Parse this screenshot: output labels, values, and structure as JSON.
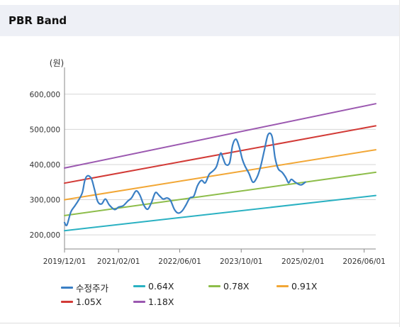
{
  "header": {
    "title": "PBR Band"
  },
  "chart_data": {
    "type": "line",
    "unit_label": "(원)",
    "x_ticks": [
      "2019/12/01",
      "2021/02/01",
      "2022/06/01",
      "2023/10/01",
      "2025/02/01",
      "2026/06/01"
    ],
    "x_range": [
      "2019/12/01",
      "2026/09/01"
    ],
    "y_ticks": [
      "200,000",
      "300,000",
      "400,000",
      "500,000",
      "600,000"
    ],
    "ylim": [
      160000,
      660000
    ],
    "grid": {
      "horizontal": true,
      "vertical": false
    },
    "legend_position": "bottom",
    "series": [
      {
        "name": "수정주가",
        "color": "#3a7fc4",
        "smooth": true,
        "points": [
          [
            "2019/12/01",
            235000
          ],
          [
            "2019/12/20",
            228000
          ],
          [
            "2020/01/20",
            265000
          ],
          [
            "2020/02/20",
            282000
          ],
          [
            "2020/03/20",
            298000
          ],
          [
            "2020/04/20",
            320000
          ],
          [
            "2020/05/10",
            355000
          ],
          [
            "2020/06/01",
            368000
          ],
          [
            "2020/07/01",
            360000
          ],
          [
            "2020/07/25",
            330000
          ],
          [
            "2020/08/20",
            295000
          ],
          [
            "2020/09/20",
            288000
          ],
          [
            "2020/10/20",
            302000
          ],
          [
            "2020/11/20",
            285000
          ],
          [
            "2021/01/01",
            272000
          ],
          [
            "2021/02/01",
            279000
          ],
          [
            "2021/03/10",
            283000
          ],
          [
            "2021/04/15",
            296000
          ],
          [
            "2021/05/15",
            305000
          ],
          [
            "2021/06/20",
            325000
          ],
          [
            "2021/07/20",
            313000
          ],
          [
            "2021/08/20",
            285000
          ],
          [
            "2021/09/20",
            273000
          ],
          [
            "2021/10/20",
            292000
          ],
          [
            "2021/11/20",
            320000
          ],
          [
            "2021/12/20",
            312000
          ],
          [
            "2022/01/20",
            302000
          ],
          [
            "2022/02/20",
            305000
          ],
          [
            "2022/03/20",
            298000
          ],
          [
            "2022/04/20",
            272000
          ],
          [
            "2022/05/20",
            262000
          ],
          [
            "2022/06/20",
            268000
          ],
          [
            "2022/07/20",
            285000
          ],
          [
            "2022/08/20",
            305000
          ],
          [
            "2022/09/20",
            310000
          ],
          [
            "2022/10/20",
            340000
          ],
          [
            "2022/11/20",
            355000
          ],
          [
            "2022/12/20",
            348000
          ],
          [
            "2023/01/20",
            372000
          ],
          [
            "2023/02/20",
            382000
          ],
          [
            "2023/03/20",
            395000
          ],
          [
            "2023/04/20",
            432000
          ],
          [
            "2023/05/10",
            418000
          ],
          [
            "2023/06/01",
            400000
          ],
          [
            "2023/07/01",
            405000
          ],
          [
            "2023/07/25",
            455000
          ],
          [
            "2023/08/20",
            472000
          ],
          [
            "2023/09/15",
            450000
          ],
          [
            "2023/10/10",
            415000
          ],
          [
            "2023/11/01",
            395000
          ],
          [
            "2023/12/01",
            375000
          ],
          [
            "2024/01/01",
            350000
          ],
          [
            "2024/02/01",
            362000
          ],
          [
            "2024/03/01",
            392000
          ],
          [
            "2024/04/01",
            440000
          ],
          [
            "2024/05/01",
            485000
          ],
          [
            "2024/06/01",
            480000
          ],
          [
            "2024/06/25",
            420000
          ],
          [
            "2024/07/20",
            388000
          ],
          [
            "2024/08/20",
            378000
          ],
          [
            "2024/09/20",
            362000
          ],
          [
            "2024/10/10",
            348000
          ],
          [
            "2024/11/01",
            358000
          ],
          [
            "2024/12/01",
            350000
          ],
          [
            "2025/01/15",
            342000
          ],
          [
            "2025/02/20",
            350000
          ]
        ]
      },
      {
        "name": "0.64X",
        "color": "#2ab1c2",
        "points": [
          [
            "2019/12/01",
            212000
          ],
          [
            "2026/09/01",
            312000
          ]
        ]
      },
      {
        "name": "0.78X",
        "color": "#8dbd4a",
        "points": [
          [
            "2019/12/01",
            255000
          ],
          [
            "2026/09/01",
            378000
          ]
        ]
      },
      {
        "name": "0.91X",
        "color": "#f2a736",
        "points": [
          [
            "2019/12/01",
            300000
          ],
          [
            "2026/09/01",
            442000
          ]
        ]
      },
      {
        "name": "1.05X",
        "color": "#d23a36",
        "points": [
          [
            "2019/12/01",
            347000
          ],
          [
            "2026/09/01",
            510000
          ]
        ]
      },
      {
        "name": "1.18X",
        "color": "#9b58b0",
        "points": [
          [
            "2019/12/01",
            390000
          ],
          [
            "2026/09/01",
            573000
          ]
        ]
      }
    ]
  }
}
